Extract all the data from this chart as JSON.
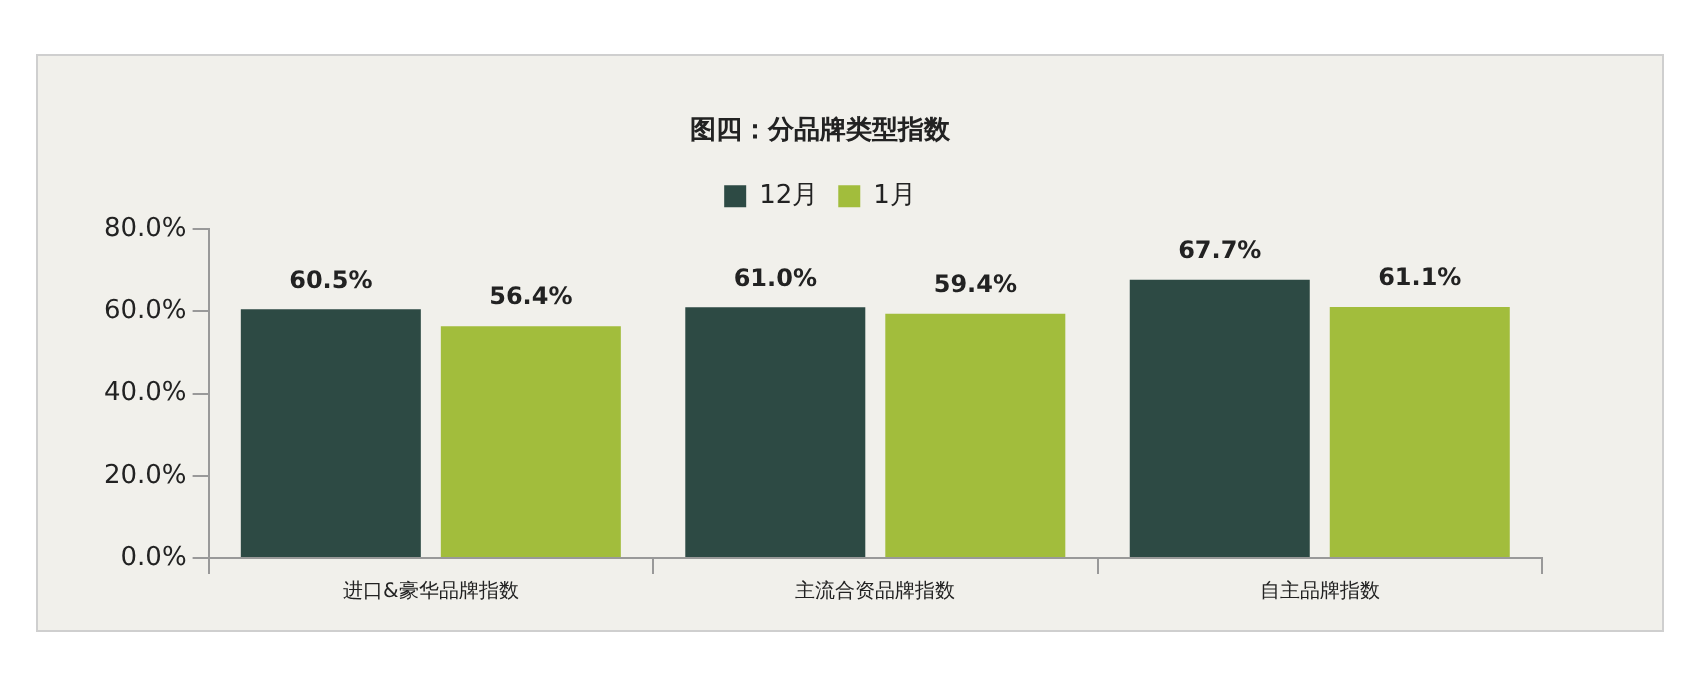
{
  "chart_data": {
    "type": "bar",
    "title": "图四：分品牌类型指数",
    "categories": [
      "进口&豪华品牌指数",
      "主流合资品牌指数",
      "自主品牌指数"
    ],
    "series": [
      {
        "name": "12月",
        "color": "#2d4a44",
        "values": [
          60.5,
          61.0,
          67.7
        ],
        "value_labels": [
          "60.5%",
          "61.0%",
          "67.7%"
        ]
      },
      {
        "name": "1月",
        "color": "#a2bd3c",
        "values": [
          56.4,
          59.4,
          61.1
        ],
        "value_labels": [
          "56.4%",
          "59.4%",
          "61.1%"
        ]
      }
    ],
    "ylim": [
      0,
      80
    ],
    "yticks": [
      {
        "value": 0,
        "label": "0.0%"
      },
      {
        "value": 20,
        "label": "20.0%"
      },
      {
        "value": 40,
        "label": "40.0%"
      },
      {
        "value": 60,
        "label": "60.0%"
      },
      {
        "value": 80,
        "label": "80.0%"
      }
    ],
    "grid": false,
    "legend": "top"
  }
}
